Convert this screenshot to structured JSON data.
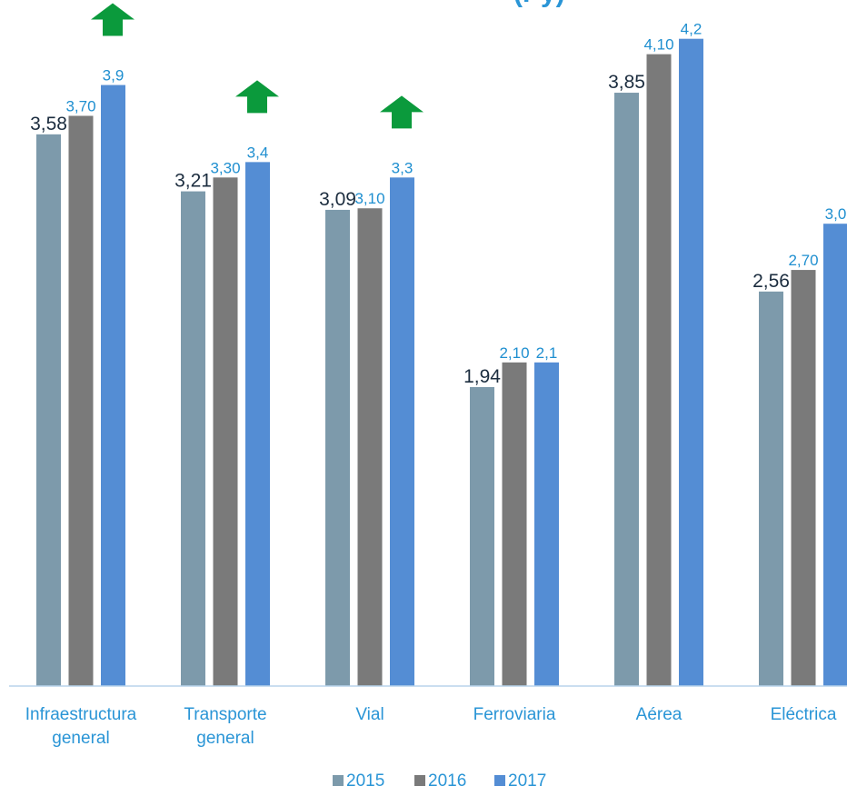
{
  "title_fragment": "(Py)",
  "colors": {
    "s2015": "#7d9aab",
    "s2016": "#7a7a7a",
    "s2017": "#548dd4",
    "arrow": "#0b9a3c",
    "label_dark": "#1c2d3f",
    "label_blue": "#1f8fd0",
    "axis_text": "#2a95d6",
    "legend_text": "#2a95d6",
    "baseline": "#b8d4ec"
  },
  "chart_data": {
    "type": "bar",
    "categories": [
      "Infraestructura general",
      "Transporte general",
      "Vial",
      "Ferroviaria",
      "Aérea",
      "Eléctrica"
    ],
    "category_lines": [
      [
        "Infraestructura",
        "general"
      ],
      [
        "Transporte",
        "general"
      ],
      [
        "Vial"
      ],
      [
        "Ferroviaria"
      ],
      [
        "Aérea"
      ],
      [
        "Eléctrica"
      ]
    ],
    "series": [
      {
        "name": "2015",
        "values": [
          3.58,
          3.21,
          3.09,
          1.94,
          3.85,
          2.56
        ],
        "labels": [
          "3,58",
          "3,21",
          "3,09",
          "1,94",
          "3,85",
          "2,56"
        ]
      },
      {
        "name": "2016",
        "values": [
          3.7,
          3.3,
          3.1,
          2.1,
          4.1,
          2.7
        ],
        "labels": [
          "3,70",
          "3,30",
          "3,10",
          "2,10",
          "4,10",
          "2,70"
        ]
      },
      {
        "name": "2017",
        "values": [
          3.9,
          3.4,
          3.3,
          2.1,
          4.2,
          3.0
        ],
        "labels": [
          "3,9",
          "3,4",
          "3,3",
          "2,1",
          "4,2",
          "3,0"
        ]
      }
    ],
    "up_arrows": [
      true,
      true,
      true,
      false,
      true,
      false
    ],
    "ylim": [
      0,
      4.5
    ],
    "grid": false,
    "legend_position": "bottom-center"
  }
}
